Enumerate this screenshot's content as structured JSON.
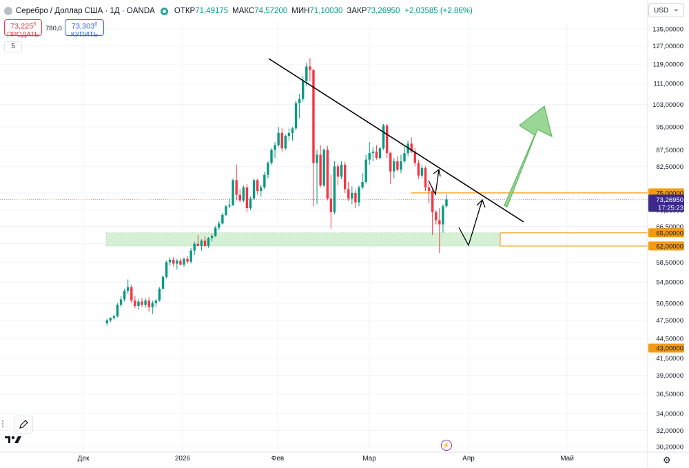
{
  "header": {
    "symbol": "Серебро / Доллар США · 1Д · OANDA",
    "open_label": "ОТКР",
    "open_value": "71,49175",
    "high_label": "МАКС",
    "high_value": "74,57200",
    "low_label": "МИН",
    "low_value": "71,10030",
    "close_label": "ЗАКР",
    "close_value": "73,26950",
    "change": "+2,03585 (+2,86%)"
  },
  "trade": {
    "sell_price": "73,225",
    "sell_price_small": "0",
    "sell_label": "ПРОДАТЬ",
    "spread": "780,0",
    "buy_price": "73,303",
    "buy_price_small": "0",
    "buy_label": "КУПИТЬ"
  },
  "indicator_count": "5",
  "currency": "USD",
  "colors": {
    "up": "#089981",
    "down": "#f23645",
    "level": "#f39c12",
    "support_zone": "#d6f0d6",
    "countdown_bg": "#6a3ec9",
    "price_bg": "#3c2a8a"
  },
  "chart_data": {
    "type": "candlestick",
    "scale": "log",
    "y_ticks": [
      "135,00000",
      "127,00000",
      "119,00000",
      "111,00000",
      "103,00000",
      "95,00000",
      "87,50000",
      "82,50000",
      "75,00000",
      "70,50000",
      "66,50000",
      "62,50000",
      "58,50000",
      "54,50000",
      "50,50000",
      "47,50000",
      "44,50000",
      "41,50000",
      "39,00000",
      "36,50000",
      "34,00000",
      "32,00000",
      "30,20000"
    ],
    "x_labels": [
      "Дек",
      "2026",
      "Фев",
      "Мар",
      "Апр",
      "Май"
    ],
    "price_tag": "73,26950",
    "countdown": "17:25:23",
    "level_tags": [
      "75,00000",
      "65,00000",
      "62,00000",
      "43,00000"
    ],
    "candles": [
      [
        47.0,
        47.8,
        46.6,
        47.5
      ],
      [
        47.5,
        48.0,
        47.2,
        47.9
      ],
      [
        47.9,
        48.5,
        47.6,
        48.2
      ],
      [
        48.2,
        50.5,
        48.0,
        50.2
      ],
      [
        50.2,
        51.8,
        49.8,
        51.2
      ],
      [
        51.2,
        53.2,
        50.8,
        52.8
      ],
      [
        52.8,
        55.0,
        52.2,
        53.5
      ],
      [
        53.5,
        54.0,
        50.5,
        51.0
      ],
      [
        51.0,
        51.8,
        49.6,
        50.0
      ],
      [
        50.0,
        51.3,
        49.4,
        50.8
      ],
      [
        50.8,
        51.5,
        49.8,
        50.2
      ],
      [
        50.2,
        51.4,
        49.7,
        51.0
      ],
      [
        51.0,
        51.6,
        49.0,
        49.8
      ],
      [
        49.8,
        51.0,
        48.6,
        50.5
      ],
      [
        50.5,
        51.2,
        49.8,
        51.0
      ],
      [
        51.0,
        53.5,
        50.8,
        53.2
      ],
      [
        53.2,
        55.8,
        53.0,
        55.5
      ],
      [
        55.5,
        58.8,
        55.2,
        58.5
      ],
      [
        58.5,
        59.5,
        57.8,
        59.0
      ],
      [
        59.0,
        59.6,
        57.6,
        58.2
      ],
      [
        58.2,
        59.2,
        57.0,
        58.8
      ],
      [
        58.8,
        59.4,
        57.8,
        58.0
      ],
      [
        58.0,
        59.5,
        57.5,
        59.2
      ],
      [
        59.2,
        59.8,
        58.2,
        58.6
      ],
      [
        58.6,
        61.6,
        58.2,
        61.0
      ],
      [
        61.0,
        63.0,
        60.0,
        62.5
      ],
      [
        62.5,
        64.5,
        62.0,
        62.0
      ],
      [
        62.0,
        63.5,
        61.0,
        63.2
      ],
      [
        63.2,
        64.2,
        61.8,
        62.0
      ],
      [
        62.0,
        64.0,
        61.6,
        63.8
      ],
      [
        63.8,
        64.8,
        63.0,
        64.3
      ],
      [
        64.3,
        66.6,
        64.0,
        66.2
      ],
      [
        66.2,
        67.8,
        65.6,
        67.2
      ],
      [
        67.2,
        69.8,
        67.0,
        69.3
      ],
      [
        69.3,
        71.8,
        69.0,
        71.5
      ],
      [
        71.5,
        73.5,
        71.0,
        71.8
      ],
      [
        71.8,
        79.0,
        71.5,
        78.5
      ],
      [
        78.5,
        83.0,
        73.0,
        74.5
      ],
      [
        74.5,
        76.0,
        72.5,
        73.0
      ],
      [
        73.0,
        77.0,
        72.6,
        76.5
      ],
      [
        76.5,
        77.5,
        70.0,
        71.0
      ],
      [
        71.0,
        74.0,
        70.5,
        73.5
      ],
      [
        73.5,
        79.0,
        73.2,
        78.5
      ],
      [
        78.5,
        79.0,
        74.5,
        75.5
      ],
      [
        75.5,
        77.2,
        74.0,
        76.5
      ],
      [
        76.5,
        80.8,
        76.0,
        80.0
      ],
      [
        80.0,
        84.0,
        79.0,
        83.5
      ],
      [
        83.5,
        88.0,
        83.0,
        87.5
      ],
      [
        87.5,
        90.0,
        85.0,
        89.0
      ],
      [
        89.0,
        95.0,
        88.5,
        93.0
      ],
      [
        93.0,
        94.5,
        87.0,
        88.0
      ],
      [
        88.0,
        92.5,
        87.5,
        92.0
      ],
      [
        92.0,
        94.5,
        90.5,
        93.0
      ],
      [
        93.0,
        95.0,
        90.5,
        94.5
      ],
      [
        94.5,
        104.5,
        94.0,
        103.5
      ],
      [
        103.5,
        107.0,
        98.0,
        105.0
      ],
      [
        105.0,
        114.0,
        104.0,
        112.0
      ],
      [
        112.0,
        119.5,
        110.0,
        118.0
      ],
      [
        118.0,
        121.5,
        112.0,
        116.5
      ],
      [
        116.5,
        117.0,
        71.5,
        83.5
      ],
      [
        83.5,
        87.5,
        72.0,
        86.0
      ],
      [
        86.0,
        89.0,
        76.5,
        77.0
      ],
      [
        77.0,
        88.0,
        76.5,
        87.5
      ],
      [
        87.5,
        88.8,
        73.0,
        73.5
      ],
      [
        73.5,
        80.0,
        66.0,
        70.0
      ],
      [
        70.0,
        84.0,
        69.5,
        82.5
      ],
      [
        82.5,
        83.3,
        77.0,
        79.5
      ],
      [
        79.5,
        84.0,
        78.8,
        83.0
      ],
      [
        83.0,
        83.8,
        75.0,
        76.0
      ],
      [
        76.0,
        78.0,
        72.8,
        73.5
      ],
      [
        73.5,
        76.8,
        72.0,
        75.0
      ],
      [
        75.0,
        76.0,
        71.0,
        72.5
      ],
      [
        72.5,
        77.0,
        71.5,
        76.5
      ],
      [
        76.5,
        80.5,
        76.0,
        78.0
      ],
      [
        78.0,
        86.0,
        77.5,
        84.5
      ],
      [
        84.5,
        90.0,
        83.0,
        86.5
      ],
      [
        86.5,
        88.5,
        84.0,
        87.0
      ],
      [
        87.0,
        89.0,
        84.5,
        85.0
      ],
      [
        85.0,
        88.5,
        84.5,
        88.0
      ],
      [
        88.0,
        96.0,
        87.5,
        95.5
      ],
      [
        95.5,
        96.0,
        85.0,
        86.5
      ],
      [
        86.5,
        87.0,
        77.5,
        81.0
      ],
      [
        81.0,
        85.0,
        79.0,
        84.0
      ],
      [
        84.0,
        85.5,
        81.0,
        81.5
      ],
      [
        81.5,
        86.0,
        80.5,
        84.0
      ],
      [
        84.0,
        88.5,
        83.5,
        86.5
      ],
      [
        86.5,
        90.5,
        85.5,
        89.5
      ],
      [
        89.5,
        91.5,
        86.5,
        87.0
      ],
      [
        87.0,
        88.0,
        82.5,
        83.5
      ],
      [
        83.5,
        84.5,
        78.8,
        79.8
      ],
      [
        79.8,
        83.0,
        79.0,
        82.0
      ],
      [
        82.0,
        82.5,
        75.5,
        76.5
      ],
      [
        76.5,
        77.5,
        72.2,
        75.5
      ],
      [
        75.5,
        76.0,
        64.5,
        70.0
      ],
      [
        70.0,
        70.5,
        67.0,
        68.0
      ],
      [
        68.0,
        71.0,
        60.5,
        67.0
      ],
      [
        67.0,
        72.0,
        65.0,
        71.5
      ],
      [
        71.5,
        74.6,
        71.1,
        73.27
      ]
    ],
    "candle_step_px": 5.08,
    "annotations": {
      "resistance_levels": [
        75.0,
        65.0,
        62.0,
        43.0
      ],
      "support_zone": [
        62.0,
        65.0
      ],
      "trendline": "descending",
      "projection": "up-arrow"
    }
  }
}
